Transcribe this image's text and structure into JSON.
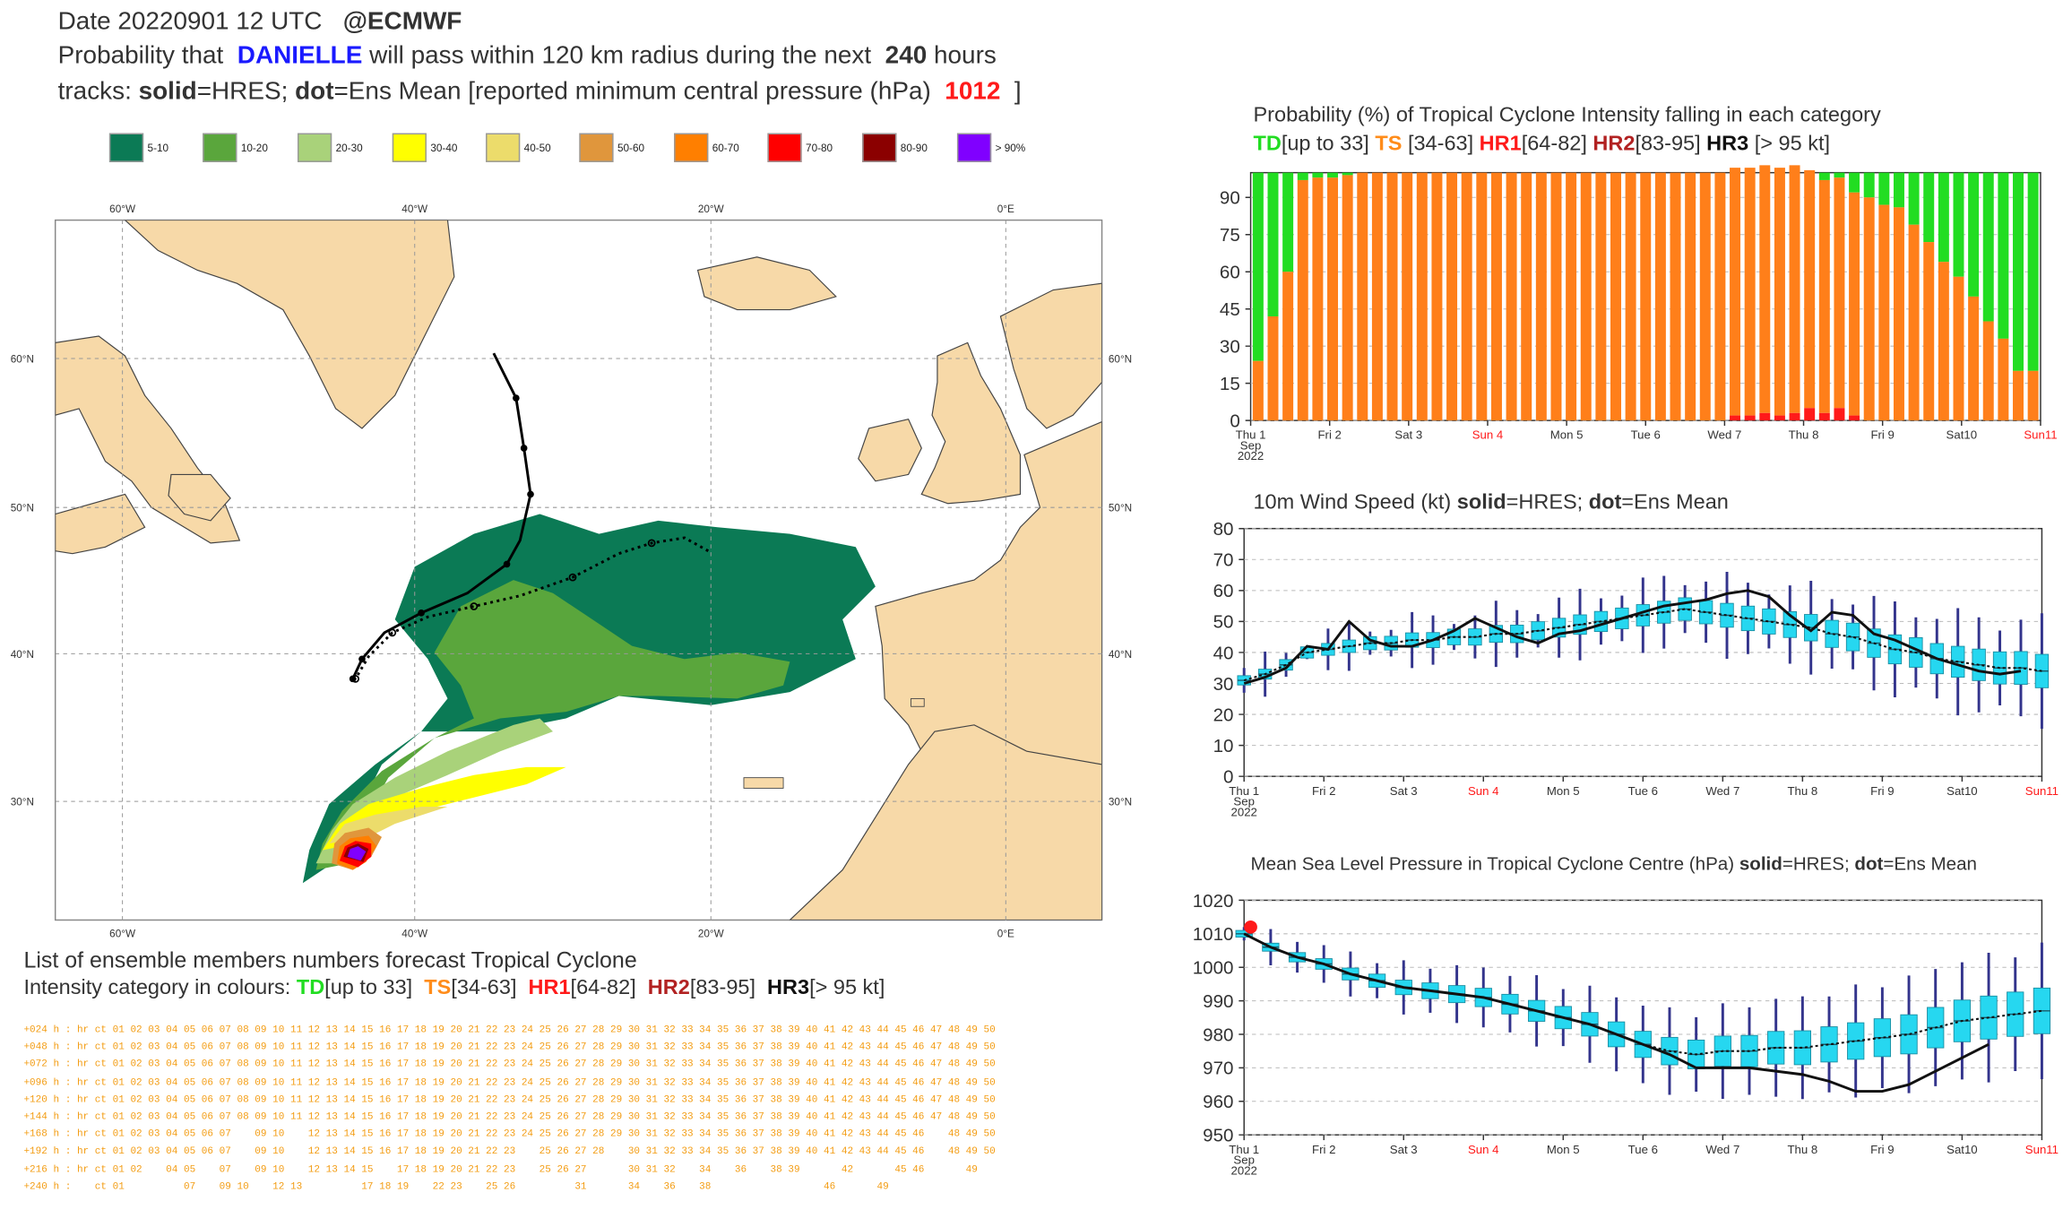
{
  "header": {
    "line1_date": "Date 20220901 12 UTC",
    "line1_source": "@ECMWF",
    "line2_pre": "Probability that",
    "line2_name": "DANIELLE",
    "line2_mid": "will pass within 120 km radius during the next",
    "line2_hours": "240",
    "line2_post": "hours",
    "line3_a": "tracks:",
    "line3_b": "solid",
    "line3_c": "=HRES;",
    "line3_d": "dot",
    "line3_e": "=Ens Mean [reported minimum central pressure (hPa)",
    "line3_pressure": "1012",
    "line3_close": "]"
  },
  "legend": [
    {
      "label": "5-10",
      "color": "#0b7a55"
    },
    {
      "label": "10-20",
      "color": "#5aa63c"
    },
    {
      "label": "20-30",
      "color": "#a9d27a"
    },
    {
      "label": "30-40",
      "color": "#ffff00"
    },
    {
      "label": "40-50",
      "color": "#ecdc6b"
    },
    {
      "label": "50-60",
      "color": "#e0963c"
    },
    {
      "label": "60-70",
      "color": "#ff7f00"
    },
    {
      "label": "70-80",
      "color": "#ff0000"
    },
    {
      "label": "80-90",
      "color": "#8b0000"
    },
    {
      "label": "> 90%",
      "color": "#8000ff"
    }
  ],
  "map": {
    "lon_top": [
      "60°W",
      "40°W",
      "20°W",
      "0°E"
    ],
    "lon_bottom": [
      "60°W",
      "40°W",
      "20°W",
      "0°E"
    ],
    "lat_left": [
      "60°N",
      "50°N",
      "40°N",
      "30°N"
    ],
    "lat_right": [
      "60°N",
      "50°N",
      "40°N",
      "30°N"
    ],
    "colors": {
      "land": "#f7d9a8",
      "sea": "#ffffff"
    }
  },
  "ens_list": {
    "title1": "List of ensemble members numbers forecast Tropical Cyclone",
    "title2_pre": "Intensity category in colours:",
    "td": "TD",
    "td_range": "[up to 33]",
    "ts": "TS",
    "ts_range": "[34-63]",
    "hr1": "HR1",
    "hr1_range": "[64-82]",
    "hr2": "HR2",
    "hr2_range": "[83-95]",
    "hr3": "HR3",
    "hr3_range": "[> 95 kt]",
    "rows": [
      "+024 h : hr ct 01 02 03 04 05 06 07 08 09 10 11 12 13 14 15 16 17 18 19 20 21 22 23 24 25 26 27 28 29 30 31 32 33 34 35 36 37 38 39 40 41 42 43 44 45 46 47 48 49 50",
      "+048 h : hr ct 01 02 03 04 05 06 07 08 09 10 11 12 13 14 15 16 17 18 19 20 21 22 23 24 25 26 27 28 29 30 31 32 33 34 35 36 37 38 39 40 41 42 43 44 45 46 47 48 49 50",
      "+072 h : hr ct 01 02 03 04 05 06 07 08 09 10 11 12 13 14 15 16 17 18 19 20 21 22 23 24 25 26 27 28 29 30 31 32 33 34 35 36 37 38 39 40 41 42 43 44 45 46 47 48 49 50",
      "+096 h : hr ct 01 02 03 04 05 06 07 08 09 10 11 12 13 14 15 16 17 18 19 20 21 22 23 24 25 26 27 28 29 30 31 32 33 34 35 36 37 38 39 40 41 42 43 44 45 46 47 48 49 50",
      "+120 h : hr ct 01 02 03 04 05 06 07 08 09 10 11 12 13 14 15 16 17 18 19 20 21 22 23 24 25 26 27 28 29 30 31 32 33 34 35 36 37 38 39 40 41 42 43 44 45 46 47 48 49 50",
      "+144 h : hr ct 01 02 03 04 05 06 07 08 09 10 11 12 13 14 15 16 17 18 19 20 21 22 23 24 25 26 27 28 29 30 31 32 33 34 35 36 37 38 39 40 41 42 43 44 45 46 47 48 49 50",
      "+168 h : hr ct 01 02 03 04 05 06 07    09 10    12 13 14 15 16 17 18 19 20 21 22 23 24 25 26 27 28 29 30 31 32 33 34 35 36 37 38 39 40 41 42 43 44 45 46    48 49 50",
      "+192 h : hr ct 01 02 03 04 05 06 07    09 10    12 13 14 15 16 17 18 19 20 21 22 23    25 26 27 28    30 31 32 33 34 35 36 37 38 39 40 41 42 43 44 45 46    48 49 50",
      "+216 h : hr ct 01 02    04 05    07    09 10    12 13 14 15    17 18 19 20 21 22 23    25 26 27       30 31 32    34    36    38 39       42       45 46       49",
      "+240 h :    ct 01          07    09 10    12 13          17 18 19    22 23    25 26          31       34    36    38                   46       49"
    ]
  },
  "panel1": {
    "title1": "Probability (%) of Tropical Cyclone Intensity falling in each category",
    "td": "TD",
    "td_range": "[up to 33]",
    "ts": "TS",
    "ts_range": " [34-63]",
    "hr1": "HR1",
    "hr1_range": "[64-82]",
    "hr2": "HR2",
    "hr2_range": "[83-95]",
    "hr3": "HR3",
    "hr3_range": "[> 95 kt]"
  },
  "panel2": {
    "title_pre": "10m Wind Speed (kt)",
    "solid": "solid",
    "mid": "=HRES;",
    "dot": "dot",
    "post": "=Ens Mean"
  },
  "panel3": {
    "title_pre": "Mean Sea Level Pressure in Tropical Cyclone Centre (hPa)",
    "solid": "solid",
    "mid": "=HRES;",
    "dot": "dot",
    "post": "=Ens Mean"
  },
  "chart_data": [
    {
      "type": "bar",
      "title": "Probability (%) of Tropical Cyclone Intensity falling in each category",
      "ylim": [
        0,
        100
      ],
      "yticks": [
        0,
        15,
        30,
        45,
        60,
        75,
        90
      ],
      "x_ticks": [
        "Thu 1\nSep\n2022",
        "Fri 2",
        "Sat 3",
        "Sun 4",
        "Mon 5",
        "Tue 6",
        "Wed 7",
        "Thu 8",
        "Fri 9",
        "Sat10",
        "Sun11"
      ],
      "weekend_color": "#ff1a1a",
      "series": [
        {
          "name": "TD",
          "color": "#22dd22"
        },
        {
          "name": "TS",
          "color": "#ff7f1a"
        },
        {
          "name": "HR1",
          "color": "#ff1a1a"
        },
        {
          "name": "HR2",
          "color": "#b22222"
        },
        {
          "name": "HR3",
          "color": "#111111"
        }
      ],
      "ts_values": [
        24,
        42,
        60,
        97,
        98,
        98,
        99,
        100,
        100,
        100,
        100,
        100,
        100,
        100,
        100,
        100,
        100,
        100,
        100,
        100,
        100,
        100,
        100,
        100,
        100,
        100,
        100,
        100,
        100,
        100,
        100,
        100,
        100,
        100,
        100,
        100,
        100,
        96,
        94,
        93,
        90,
        90,
        87,
        86,
        79,
        72,
        64,
        58,
        50,
        40,
        33,
        20,
        20
      ],
      "hr1_values": [
        0,
        0,
        0,
        0,
        0,
        0,
        0,
        0,
        0,
        0,
        0,
        0,
        0,
        0,
        0,
        0,
        0,
        0,
        0,
        0,
        0,
        0,
        0,
        0,
        0,
        0,
        0,
        0,
        0,
        0,
        0,
        0,
        2,
        2,
        3,
        2,
        3,
        5,
        3,
        5,
        2,
        0,
        0,
        0,
        0,
        0,
        0,
        0,
        0,
        0,
        0,
        0,
        0
      ]
    },
    {
      "type": "line",
      "title": "10m Wind Speed (kt)",
      "ylim": [
        0,
        80
      ],
      "yticks": [
        0,
        10,
        20,
        30,
        40,
        50,
        60,
        70,
        80
      ],
      "x_ticks": [
        "Thu 1\nSep\n2022",
        "Fri 2",
        "Sat 3",
        "Sun 4",
        "Mon 5",
        "Tue 6",
        "Wed 7",
        "Thu 8",
        "Fri 9",
        "Sat10",
        "Sun11"
      ],
      "hres": [
        30,
        32,
        35,
        42,
        41,
        50,
        44,
        42,
        42,
        44,
        47,
        51,
        48,
        45,
        43,
        46,
        47,
        49,
        51,
        53,
        55,
        56,
        57,
        59,
        60,
        58,
        52,
        47,
        53,
        52,
        46,
        44,
        41,
        38,
        36,
        34,
        33,
        34
      ],
      "ens_mean": [
        31,
        33,
        36,
        40,
        41,
        42,
        43,
        43,
        44,
        44,
        45,
        45,
        46,
        46,
        47,
        48,
        49,
        50,
        51,
        52,
        53,
        54,
        53,
        52,
        51,
        50,
        49,
        48,
        46,
        45,
        43,
        41,
        40,
        38,
        37,
        36,
        35,
        35,
        34
      ],
      "box_color": "#26d7f0"
    },
    {
      "type": "line",
      "title": "Mean Sea Level Pressure in Tropical Cyclone Centre (hPa)",
      "ylim": [
        950,
        1020
      ],
      "yticks": [
        950,
        960,
        970,
        980,
        990,
        1000,
        1010,
        1020
      ],
      "x_ticks": [
        "Thu 1\nSep\n2022",
        "Fri 2",
        "Sat 3",
        "Sun 4",
        "Mon 5",
        "Tue 6",
        "Wed 7",
        "Thu 8",
        "Fri 9",
        "Sat10",
        "Sun11"
      ],
      "observed": 1012,
      "hres": [
        1010,
        1006,
        1003,
        1001,
        998,
        996,
        994,
        993,
        992,
        991,
        989,
        987,
        985,
        983,
        980,
        977,
        974,
        970,
        970,
        970,
        969,
        968,
        966,
        963,
        963,
        965,
        969,
        973,
        977
      ],
      "ens_mean": [
        1010,
        1006,
        1003,
        1001,
        998,
        996,
        994,
        993,
        992,
        991,
        989,
        987,
        985,
        983,
        980,
        977,
        975,
        974,
        975,
        975,
        976,
        976,
        977,
        978,
        979,
        980,
        982,
        984,
        985,
        986,
        987
      ]
    }
  ]
}
